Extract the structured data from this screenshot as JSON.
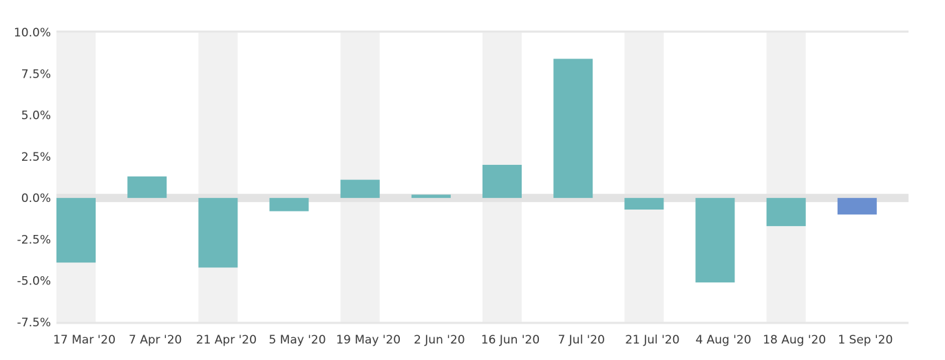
{
  "chart_data": {
    "type": "bar",
    "title": "",
    "xlabel": "",
    "ylabel": "",
    "categories": [
      "17 Mar '20",
      "7 Apr '20",
      "21 Apr '20",
      "5 May '20",
      "19 May '20",
      "2 Jun '20",
      "16 Jun '20",
      "7 Jul '20",
      "21 Jul '20",
      "4 Aug '20",
      "18 Aug '20",
      "1 Sep '20"
    ],
    "values": [
      -3.9,
      1.3,
      -4.2,
      -0.8,
      1.1,
      0.2,
      2.0,
      8.4,
      -0.7,
      -5.1,
      -1.7,
      -1.0
    ],
    "ylim": [
      -7.5,
      10.0
    ],
    "yticks": [
      -7.5,
      -5.0,
      -2.5,
      0.0,
      2.5,
      5.0,
      7.5,
      10.0
    ],
    "ytick_labels": [
      "-7.5%",
      "-5.0%",
      "-2.5%",
      "0.0%",
      "2.5%",
      "5.0%",
      "7.5%",
      "10.0%"
    ],
    "bar_color": "#6cb8ba",
    "highlight_color": "#6a8fd0",
    "highlight_index": 11,
    "band_color": "#f1f1f1",
    "zero_band_color": "#e3e3e3",
    "grid": false,
    "legend": "none"
  }
}
